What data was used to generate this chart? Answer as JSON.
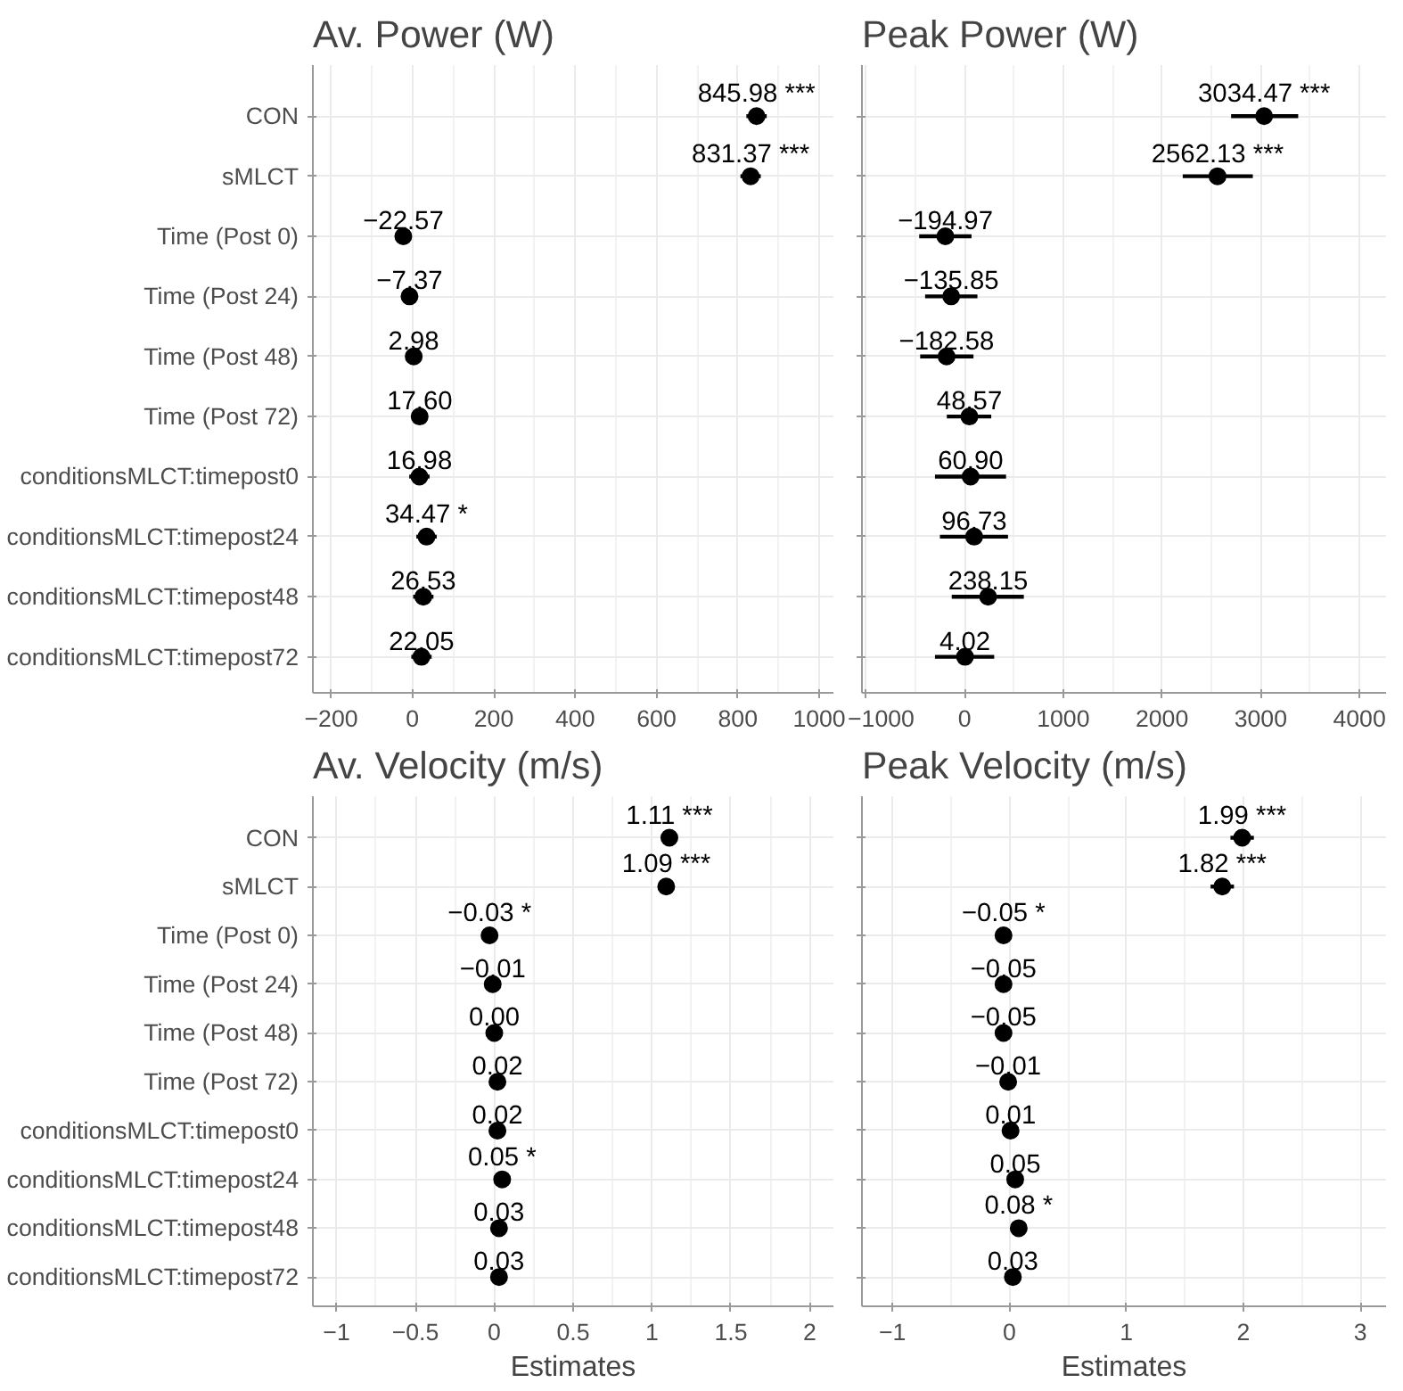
{
  "chart_data": [
    {
      "type": "scatter",
      "orientation": "horizontal",
      "title": "Av. Power (W)",
      "categories": [
        "CON",
        "sMLCT",
        "Time (Post 0)",
        "Time (Post 24)",
        "Time (Post 48)",
        "Time (Post 72)",
        "conditionsMLCT:timepost0",
        "conditionsMLCT:timepost24",
        "conditionsMLCT:timepost48",
        "conditionsMLCT:timepost72"
      ],
      "color": "#000000",
      "values": [
        845.98,
        831.37,
        -22.57,
        -7.37,
        2.98,
        17.6,
        16.98,
        34.47,
        26.53,
        22.05
      ],
      "errors": [
        25,
        25,
        20,
        20,
        20,
        20,
        25,
        25,
        25,
        25
      ],
      "value_labels": [
        "845.98 ***",
        "831.37 ***",
        "−22.57",
        "−7.37",
        "2.98",
        "17.60",
        "16.98",
        "34.47 *",
        "26.53",
        "22.05"
      ],
      "xlim": [
        -245,
        1035
      ],
      "xticks": [
        {
          "value": -200,
          "label": "−200"
        },
        0,
        200,
        400,
        600,
        800,
        1000
      ],
      "grid": true,
      "marker": "circle"
    },
    {
      "type": "scatter",
      "orientation": "horizontal",
      "title": "Peak Power (W)",
      "categories": [
        null,
        null,
        null,
        null,
        null,
        null,
        null,
        null,
        null,
        null
      ],
      "color": "#000000",
      "values": [
        3034.47,
        2562.13,
        -194.97,
        -135.85,
        -182.58,
        48.57,
        60.9,
        96.73,
        238.15,
        4.02
      ],
      "errors": [
        [
          2700,
          3380
        ],
        [
          2210,
          2920
        ],
        [
          -460,
          70
        ],
        [
          -400,
          130
        ],
        [
          -450,
          90
        ],
        [
          -180,
          270
        ],
        [
          -300,
          420
        ],
        [
          -250,
          440
        ],
        [
          -130,
          600
        ],
        [
          -300,
          300
        ]
      ],
      "value_labels": [
        "3034.47 ***",
        "2562.13 ***",
        "−194.97",
        "−135.85",
        "−182.58",
        "48.57",
        "60.90",
        "96.73",
        "238.15",
        "4.02"
      ],
      "xlim": [
        -1040,
        4270
      ],
      "xticks": [
        {
          "value": -1000,
          "label": "−1000"
        },
        0,
        1000,
        2000,
        3000,
        4000
      ],
      "grid": true,
      "marker": "circle",
      "tick_labels": "x"
    },
    {
      "type": "scatter",
      "orientation": "horizontal",
      "title": "Av. Velocity (m/s)",
      "xlabel": "Estimates",
      "categories": [
        "CON",
        "sMLCT",
        "Time (Post 0)",
        "Time (Post 24)",
        "Time (Post 48)",
        "Time (Post 72)",
        "conditionsMLCT:timepost0",
        "conditionsMLCT:timepost24",
        "conditionsMLCT:timepost48",
        "conditionsMLCT:timepost72"
      ],
      "color": "#000000",
      "values": [
        1.11,
        1.09,
        -0.03,
        -0.01,
        0.0,
        0.02,
        0.02,
        0.05,
        0.03,
        0.03
      ],
      "value_labels": [
        "1.11 ***",
        "1.09 ***",
        "−0.03 *",
        "−0.01",
        "0.00",
        "0.02",
        "0.02",
        "0.05 *",
        "0.03",
        "0.03"
      ],
      "xlim": [
        -1.15,
        2.15
      ],
      "xticks": [
        {
          "value": -1,
          "label": "−1"
        },
        {
          "value": -0.5,
          "label": "−0.5"
        },
        0,
        0.5,
        1,
        1.5,
        2
      ],
      "grid": true,
      "marker": "circle"
    },
    {
      "type": "scatter",
      "orientation": "horizontal",
      "title": "Peak Velocity (m/s)",
      "xlabel": "Estimates",
      "categories": [
        null,
        null,
        null,
        null,
        null,
        null,
        null,
        null,
        null,
        null
      ],
      "color": "#000000",
      "values": [
        1.99,
        1.82,
        -0.05,
        -0.05,
        -0.05,
        -0.01,
        0.01,
        0.05,
        0.08,
        0.03
      ],
      "errors": [
        0.1,
        0.1,
        null,
        null,
        null,
        null,
        null,
        null,
        null,
        null
      ],
      "value_labels": [
        "1.99 ***",
        "1.82 ***",
        "−0.05 *",
        "−0.05",
        "−0.05",
        "−0.01",
        "0.01",
        "0.05",
        "0.08 *",
        "0.03"
      ],
      "xlim": [
        -1.26,
        3.22
      ],
      "xticks": [
        {
          "value": -1,
          "label": "−1"
        },
        0,
        1,
        2,
        3
      ],
      "grid": true,
      "marker": "circle",
      "tick_labels": "x"
    }
  ]
}
